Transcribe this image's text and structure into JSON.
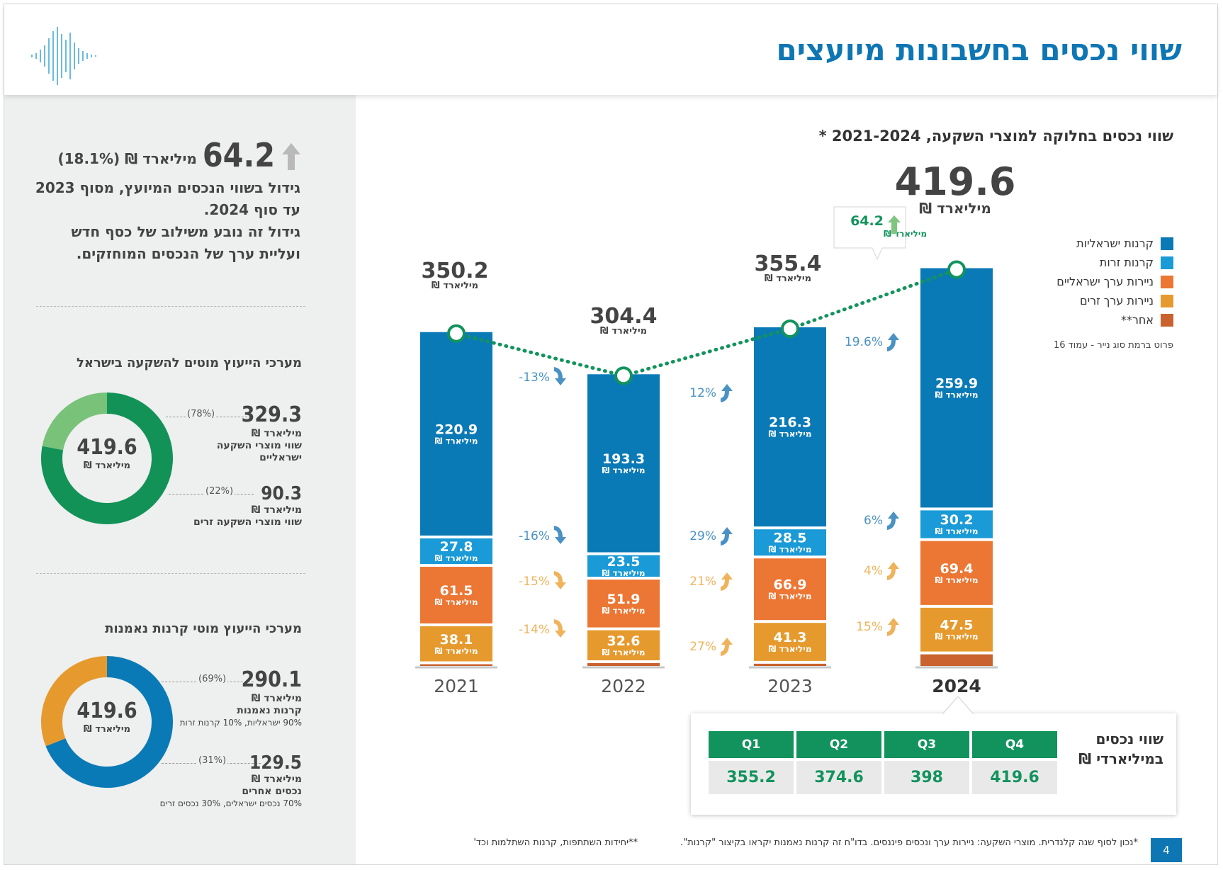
{
  "header": {
    "title": "שווי נכסים בחשבונות מיועצים"
  },
  "summary": {
    "value": "64.2",
    "unit_pct": "מיליארד ₪ (18.1%)",
    "line1": "גידול בשווי הנכסים המיועץ, מסוף 2023",
    "line2": "עד סוף 2024.",
    "line3": "גידול זה נובע משילוב של כסף חדש",
    "line4": "ועליית ערך של הנכסים המוחזקים."
  },
  "donut1": {
    "title": "מערכי הייעוץ מוטים להשקעה בישראל",
    "center_value": "419.6",
    "center_unit": "מיליארד ₪",
    "colors": [
      "#129257",
      "#78c27a"
    ],
    "shares": [
      0.78,
      0.22
    ],
    "items": [
      {
        "value": "329.3",
        "unit": "מיליארד ₪",
        "desc1": "שווי מוצרי השקעה",
        "desc2": "ישראליים",
        "pct": "(78%)"
      },
      {
        "value": "90.3",
        "unit": "מיליארד ₪",
        "desc1": "שווי מוצרי השקעה זרים",
        "pct": "(22%)"
      }
    ]
  },
  "donut2": {
    "title": "מערכי הייעוץ מוטי קרנות נאמנות",
    "center_value": "419.6",
    "center_unit": "מיליארד ₪",
    "colors": [
      "#0a7ab6",
      "#e69a2e"
    ],
    "shares": [
      0.69,
      0.31
    ],
    "items": [
      {
        "value": "290.1",
        "unit": "מיליארד ₪",
        "desc1": "קרנות נאמנות",
        "desc2": "90% ישראליות, 10% קרנות זרות",
        "pct": "(69%)"
      },
      {
        "value": "129.5",
        "unit": "מיליארד ₪",
        "desc1": "נכסים אחרים",
        "desc2": "70% נכסים ישראלים, 30% נכסים זרים",
        "pct": "(31%)"
      }
    ]
  },
  "chart_data": {
    "type": "bar",
    "title": "שווי נכסים בחלוקה למוצרי השקעה, 2021-2024 *",
    "categories": [
      "2021",
      "2022",
      "2023",
      "2024"
    ],
    "totals": [
      "350.2",
      "304.4",
      "355.4",
      "419.6"
    ],
    "total_unit": "מיליארד ₪",
    "unit_label": "מיליארד ₪",
    "series": [
      {
        "name": "קרנות ישראליות",
        "color": "#0a7ab6",
        "values": [
          220.9,
          193.3,
          216.3,
          259.9
        ]
      },
      {
        "name": "קרנות זרות",
        "color": "#1a9ad6",
        "values": [
          27.8,
          23.5,
          28.5,
          30.2
        ]
      },
      {
        "name": "ניירות ערך ישראליים",
        "color": "#ec7634",
        "values": [
          61.5,
          51.9,
          66.9,
          69.4
        ]
      },
      {
        "name": "ניירות ערך זרים",
        "color": "#e69a2e",
        "values": [
          38.1,
          32.6,
          41.3,
          47.5
        ]
      },
      {
        "name": "אחר**",
        "color": "#c9622e",
        "values": [
          1.9,
          3.1,
          2.4,
          12.6
        ]
      }
    ],
    "changes": [
      [
        "-13%",
        "-16%",
        "-15%",
        "-14%"
      ],
      [
        "12%",
        "29%",
        "21%",
        "27%"
      ],
      [
        "19.6%",
        "6%",
        "4%",
        "15%"
      ]
    ],
    "change_colors": {
      "funds": "#4a92c4",
      "securities": "#f0b25a"
    },
    "line_color": "#12935d",
    "callout": {
      "value": "64.2",
      "unit": "מיליארד ₪"
    },
    "legend_note": "פרוט ברמת סוג נייר - עמוד 16"
  },
  "quarters": {
    "title1": "שווי נכסים",
    "title2": "במיליארדי ₪",
    "labels": [
      "Q1",
      "Q2",
      "Q3",
      "Q4"
    ],
    "values": [
      "355.2",
      "374.6",
      "398",
      "419.6"
    ]
  },
  "footer": {
    "note1": "*נכון לסוף שנה קלנדרית. מוצרי השקעה: ניירות ערך ונכסים פיננסים. בדו\"ח זה קרנות נאמנות יקראו בקיצור \"קרנות\".",
    "note2": "**יחידות השתתפות, קרנות השתלמות וכד'",
    "page": "4"
  }
}
